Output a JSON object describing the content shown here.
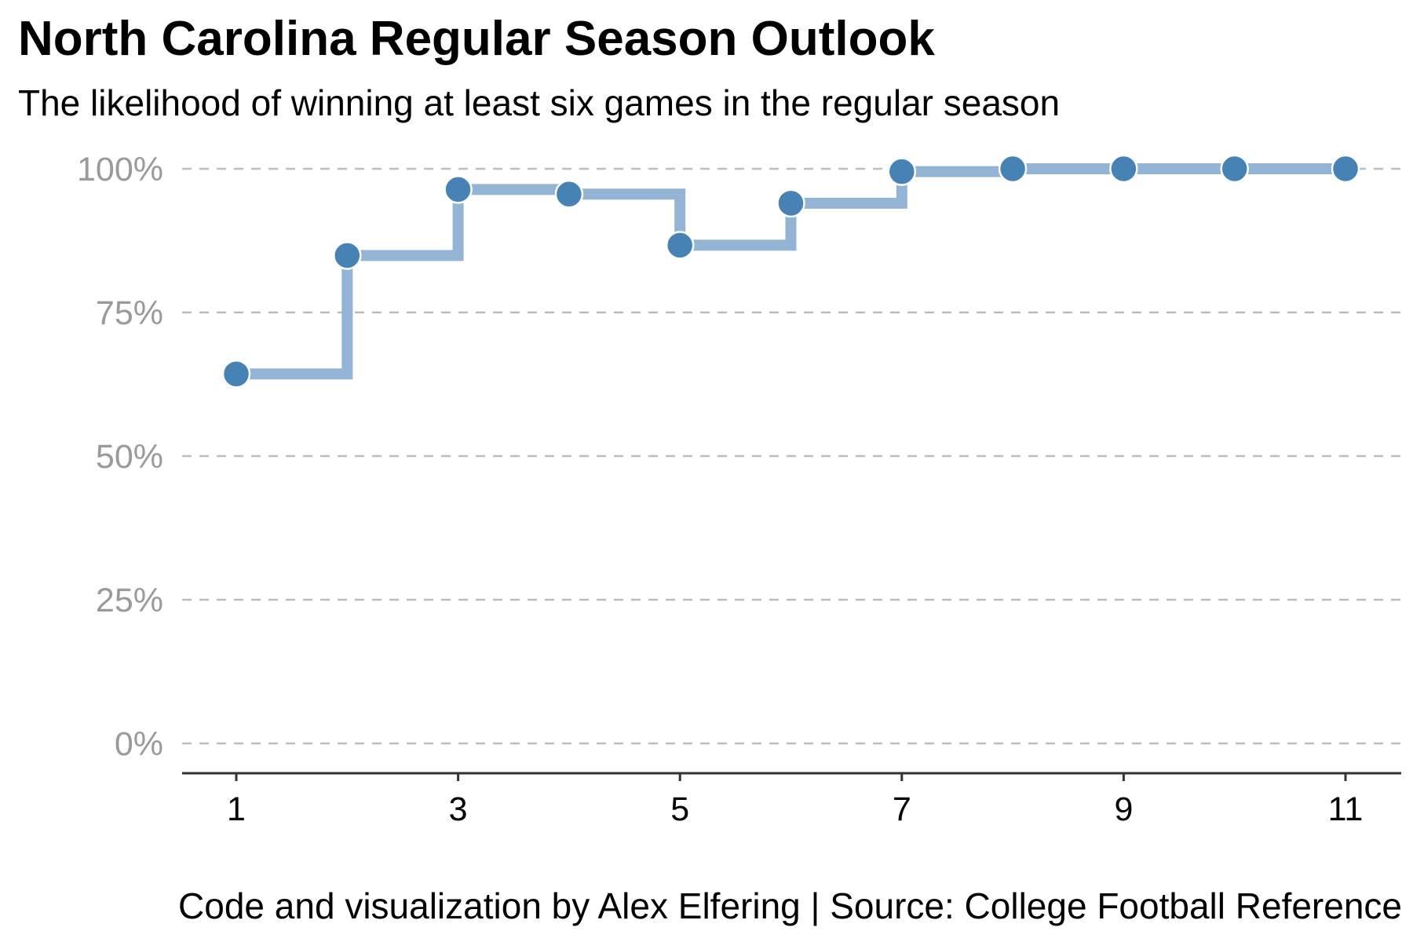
{
  "chart_data": {
    "type": "line",
    "step": true,
    "title": "North Carolina Regular Season Outlook",
    "subtitle": "The likelihood of winning at least six games in the regular season",
    "caption": "Code and visualization by Alex Elfering | Source: College Football Reference",
    "xlabel": "",
    "ylabel": "",
    "x": [
      1,
      2,
      3,
      4,
      5,
      6,
      7,
      8,
      9,
      10,
      11
    ],
    "y": [
      64.3,
      84.9,
      96.4,
      95.6,
      86.7,
      94.0,
      99.5,
      100,
      100,
      100,
      100
    ],
    "xlim": [
      0.5,
      11.5
    ],
    "ylim": [
      -5,
      100
    ],
    "x_ticks": [
      1,
      3,
      5,
      7,
      9,
      11
    ],
    "x_tick_labels": [
      "1",
      "3",
      "5",
      "7",
      "9",
      "11"
    ],
    "y_ticks": [
      0,
      25,
      50,
      75,
      100
    ],
    "y_tick_labels": [
      "0%",
      "25%",
      "50%",
      "75%",
      "100%"
    ],
    "grid": "horizontal dashed",
    "legend": "none",
    "colors": {
      "point": "#4682b4",
      "step_line": "#93b4d4",
      "grid": "#bdbdbd",
      "axis": "#333333",
      "y_tick_text": "#9a9a9a"
    }
  }
}
